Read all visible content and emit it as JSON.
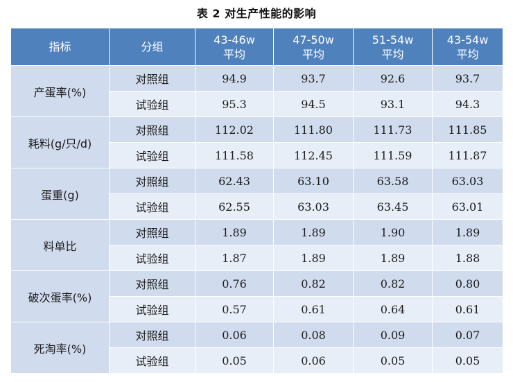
{
  "caption": "表 2  对生产性能的影响",
  "headers": {
    "metric": "指标",
    "group": "分组",
    "periods": [
      {
        "range": "43-46w",
        "stat": "平均"
      },
      {
        "range": "47-50w",
        "stat": "平均"
      },
      {
        "range": "51-54w",
        "stat": "平均"
      },
      {
        "range": "43-54w",
        "stat": "平均"
      }
    ]
  },
  "metrics": [
    {
      "name": "产蛋率(%)",
      "rows": [
        {
          "group": "对照组",
          "values": [
            "94.9",
            "93.7",
            "92.6",
            "93.7"
          ]
        },
        {
          "group": "试验组",
          "values": [
            "95.3",
            "94.5",
            "93.1",
            "94.3"
          ]
        }
      ]
    },
    {
      "name": "耗料(g/只/d)",
      "rows": [
        {
          "group": "对照组",
          "values": [
            "112.02",
            "111.80",
            "111.73",
            "111.85"
          ]
        },
        {
          "group": "试验组",
          "values": [
            "111.58",
            "112.45",
            "111.59",
            "111.87"
          ]
        }
      ]
    },
    {
      "name": "蛋重(g)",
      "rows": [
        {
          "group": "对照组",
          "values": [
            "62.43",
            "63.10",
            "63.58",
            "63.03"
          ]
        },
        {
          "group": "试验组",
          "values": [
            "62.55",
            "63.03",
            "63.45",
            "63.01"
          ]
        }
      ]
    },
    {
      "name": "料单比",
      "rows": [
        {
          "group": "对照组",
          "values": [
            "1.89",
            "1.89",
            "1.90",
            "1.89"
          ]
        },
        {
          "group": "试验组",
          "values": [
            "1.87",
            "1.89",
            "1.89",
            "1.88"
          ]
        }
      ]
    },
    {
      "name": "破次蛋率(%)",
      "rows": [
        {
          "group": "对照组",
          "values": [
            "0.76",
            "0.82",
            "0.82",
            "0.80"
          ]
        },
        {
          "group": "试验组",
          "values": [
            "0.57",
            "0.61",
            "0.64",
            "0.61"
          ]
        }
      ]
    },
    {
      "name": "死淘率(%)",
      "rows": [
        {
          "group": "对照组",
          "values": [
            "0.06",
            "0.08",
            "0.09",
            "0.07"
          ]
        },
        {
          "group": "试验组",
          "values": [
            "0.05",
            "0.06",
            "0.05",
            "0.05"
          ]
        }
      ]
    }
  ],
  "colors": {
    "header_bg": "#4f81bd",
    "band_dark": "#d0dbed",
    "band_light": "#e8eef7"
  }
}
